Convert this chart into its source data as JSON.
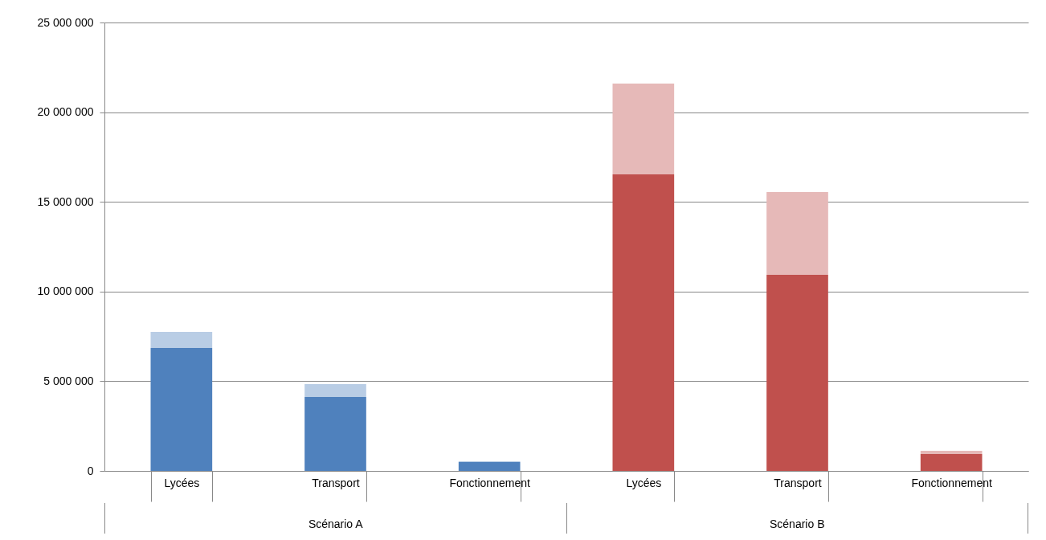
{
  "chart_data": {
    "type": "bar",
    "stacked": true,
    "categories": [
      "Lycées",
      "Transport",
      "Fonctionnement",
      "Lycées",
      "Transport",
      "Fonctionnement"
    ],
    "series": [
      {
        "color": "#4f81bd",
        "values": [
          6850000,
          4120000,
          490000,
          null,
          null,
          null
        ]
      },
      {
        "color": "#b9cde5",
        "values": [
          900000,
          720000,
          50000,
          null,
          null,
          null
        ]
      },
      {
        "color": "#c0504d",
        "values": [
          null,
          null,
          null,
          16530000,
          10930000,
          940000
        ]
      },
      {
        "color": "#e6b9b8",
        "values": [
          null,
          null,
          null,
          5070000,
          4620000,
          180000
        ]
      }
    ],
    "ylim": [
      0,
      25000000
    ],
    "yticks": [
      {
        "value": 0,
        "label": "0"
      },
      {
        "value": 5000000,
        "label": "5 000 000"
      },
      {
        "value": 10000000,
        "label": "10 000 000"
      },
      {
        "value": 15000000,
        "label": "15 000 000"
      },
      {
        "value": 20000000,
        "label": "20 000 000"
      },
      {
        "value": 25000000,
        "label": "25 000 000"
      }
    ],
    "grid": "y",
    "annotations": [
      "Scénario A",
      "Scénario B"
    ]
  }
}
